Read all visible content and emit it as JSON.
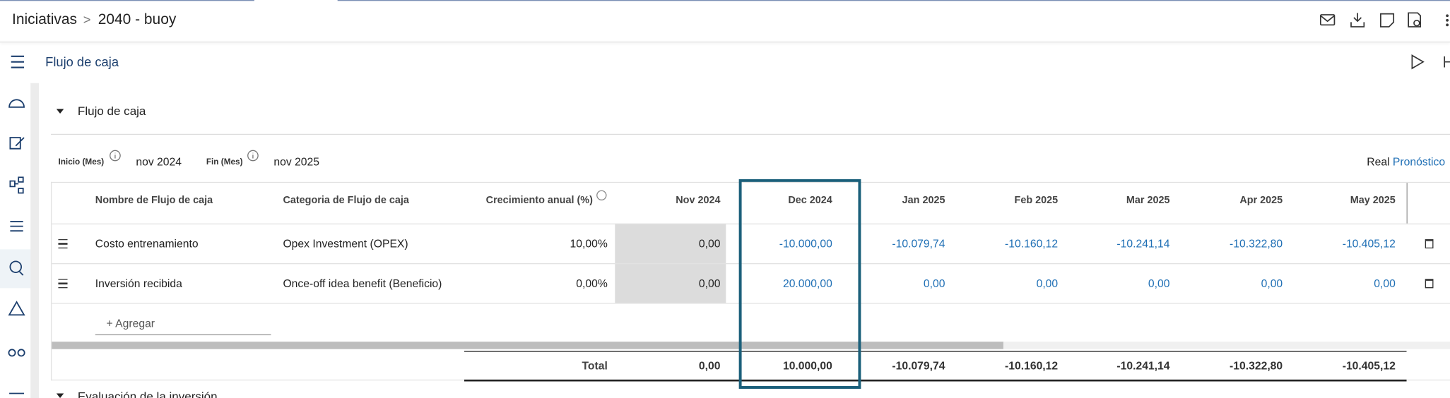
{
  "header": {
    "breadcrumb": [
      "Iniciativas",
      "2040 - buoy"
    ]
  },
  "page_title": "Flujo de caja",
  "section": {
    "title": "Flujo de caja",
    "filters": [
      {
        "label": "Inicio (Mes)",
        "value": "nov 2024"
      },
      {
        "label": "Fin (Mes)",
        "value": "nov 2025"
      }
    ],
    "view_options": [
      "Real",
      "Pronóstico"
    ]
  },
  "table": {
    "columns": [
      "Nombre de Flujo de caja",
      "Categoria de Flujo de caja",
      "Crecimiento anual (%)",
      "Nov 2024",
      "Dec 2024",
      "Jan 2025",
      "Feb 2025",
      "Mar 2025",
      "Apr 2025",
      "May 2025"
    ],
    "rows": [
      [
        "Costo entrenamiento",
        "Opex Investment (OPEX)",
        "10,00%",
        "0,00",
        "-10.000,00",
        "-10.079,74",
        "-10.160,12",
        "-10.241,14",
        "-10.322,80",
        "-10.405,12"
      ],
      [
        "Inversión recibida",
        "Once-off idea benefit (Beneficio)",
        "0,00%",
        "0,00",
        "20.000,00",
        "0,00",
        "0,00",
        "0,00",
        "0,00",
        "0,00"
      ]
    ],
    "add_label": "+ Agregar",
    "total": {
      "label": "Total",
      "values": [
        "0,00",
        "10.000,00",
        "-10.079,74",
        "-10.160,12",
        "-10.241,14",
        "-10.322,80",
        "-10.405,12"
      ]
    }
  },
  "next_section": "Evaluación de la inversión"
}
